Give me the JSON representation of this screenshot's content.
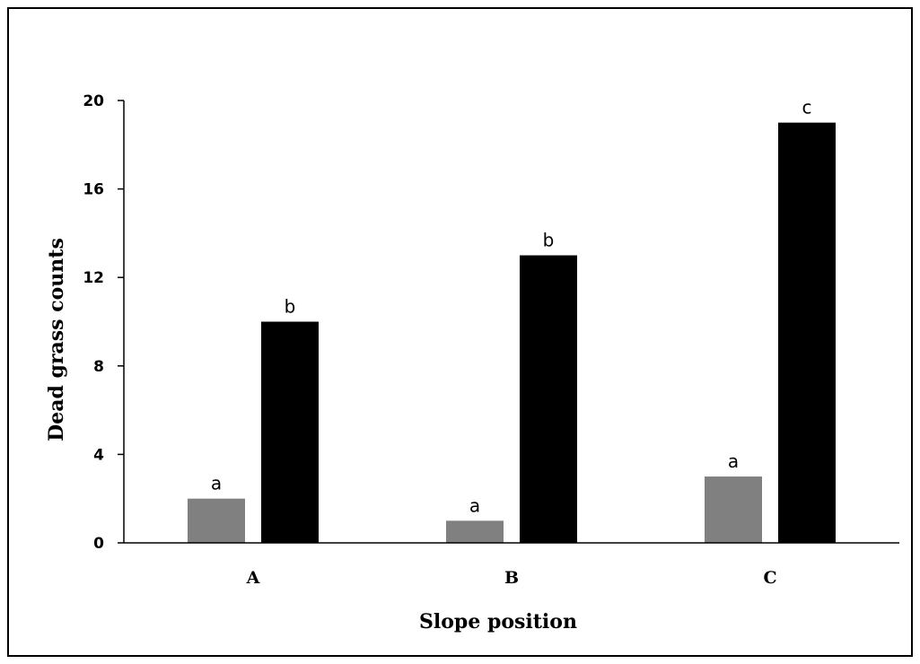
{
  "chart_data": {
    "type": "bar",
    "title": "",
    "xlabel": "Slope position",
    "ylabel": "Dead grass counts",
    "categories": [
      "A",
      "B",
      "C"
    ],
    "ylim": [
      0,
      20
    ],
    "yticks": [
      "0",
      "4",
      "8",
      "12",
      "16",
      "20"
    ],
    "grid": false,
    "legend": "none",
    "series": [
      {
        "values": [
          2,
          1,
          3
        ],
        "color": "#808080",
        "labels": [
          "a",
          "a",
          "a"
        ]
      },
      {
        "values": [
          10,
          13,
          19
        ],
        "color": "#000000",
        "labels": [
          "b",
          "b",
          "c"
        ]
      }
    ]
  }
}
